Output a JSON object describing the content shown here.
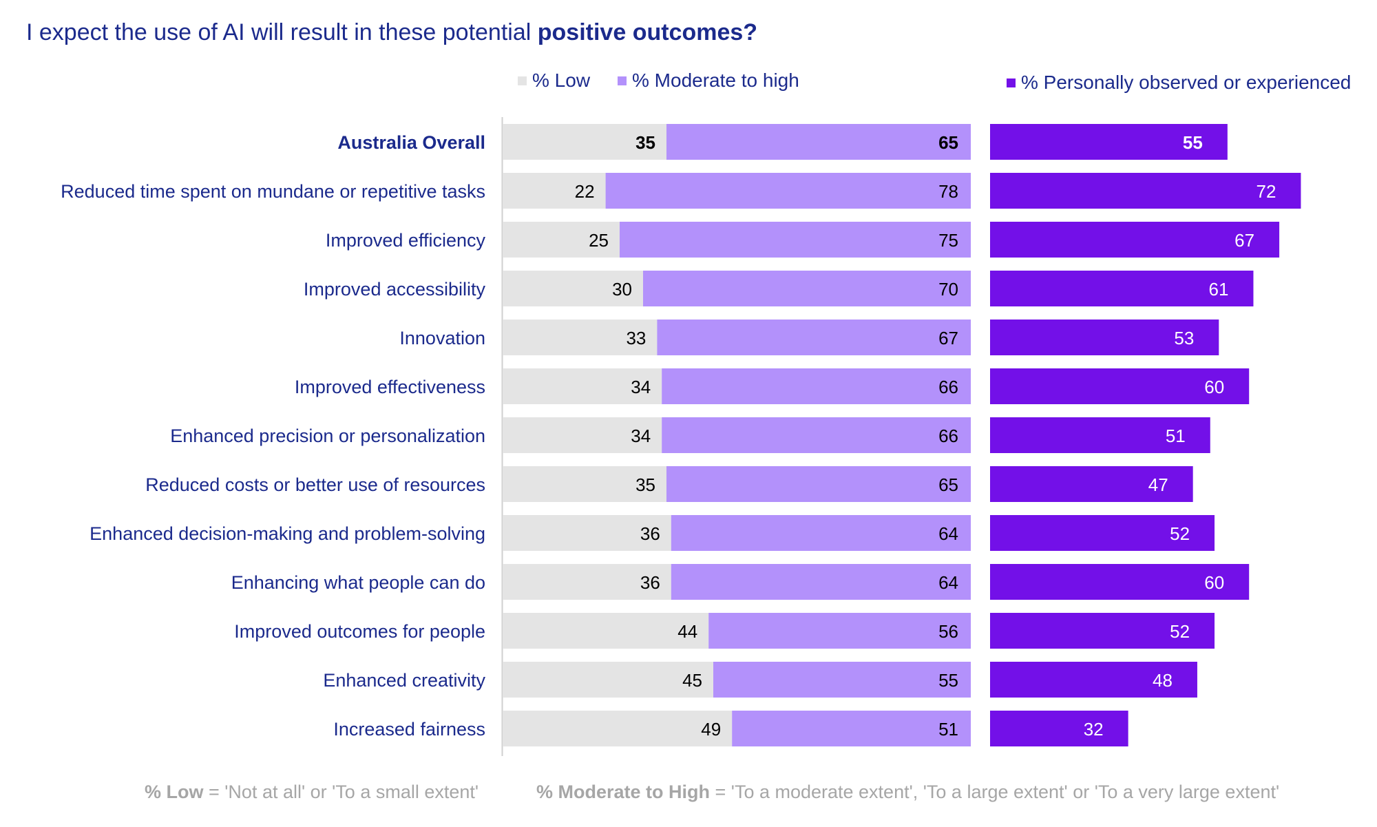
{
  "title": {
    "prefix": "I expect the use of AI will result in these potential ",
    "bold": "positive outcomes?"
  },
  "legend": {
    "low": "% Low",
    "moderate": "% Moderate to high",
    "observed": "% Personally observed or experienced"
  },
  "colors": {
    "low": "#e4e4e4",
    "moderate": "#b391fb",
    "observed": "#7310e8",
    "label": "#1b2a8c",
    "footnote": "#a6a6a6"
  },
  "footnotes": {
    "low_term": "% Low",
    "low_def": " = 'Not at all' or 'To a small extent'",
    "mod_term": "% Moderate to High",
    "mod_def": " = 'To a moderate extent', 'To a large extent' or 'To a very large extent'"
  },
  "chart_data": {
    "type": "bar",
    "orientation": "horizontal",
    "categories": [
      "Australia Overall",
      "Reduced time spent on mundane or repetitive tasks",
      "Improved efficiency",
      "Improved accessibility",
      "Innovation",
      "Improved effectiveness",
      "Enhanced precision or personalization",
      "Reduced costs or better use of resources",
      "Enhanced decision-making and problem-solving",
      "Enhancing what people can do",
      "Improved outcomes for people",
      "Enhanced creativity",
      "Increased fairness"
    ],
    "highlighted_category": "Australia Overall",
    "series": [
      {
        "name": "% Low",
        "values": [
          35,
          22,
          25,
          30,
          33,
          34,
          34,
          35,
          36,
          36,
          44,
          45,
          49
        ]
      },
      {
        "name": "% Moderate to high",
        "values": [
          65,
          78,
          75,
          70,
          67,
          66,
          66,
          65,
          64,
          64,
          56,
          55,
          51
        ]
      },
      {
        "name": "% Personally observed or experienced",
        "values": [
          55,
          72,
          67,
          61,
          53,
          60,
          51,
          47,
          52,
          60,
          52,
          48,
          32
        ]
      }
    ],
    "stacked_panel": [
      "% Low",
      "% Moderate to high"
    ],
    "separate_panel": [
      "% Personally observed or experienced"
    ],
    "xlim": [
      0,
      100
    ],
    "grid": false,
    "legend_position": "top"
  }
}
